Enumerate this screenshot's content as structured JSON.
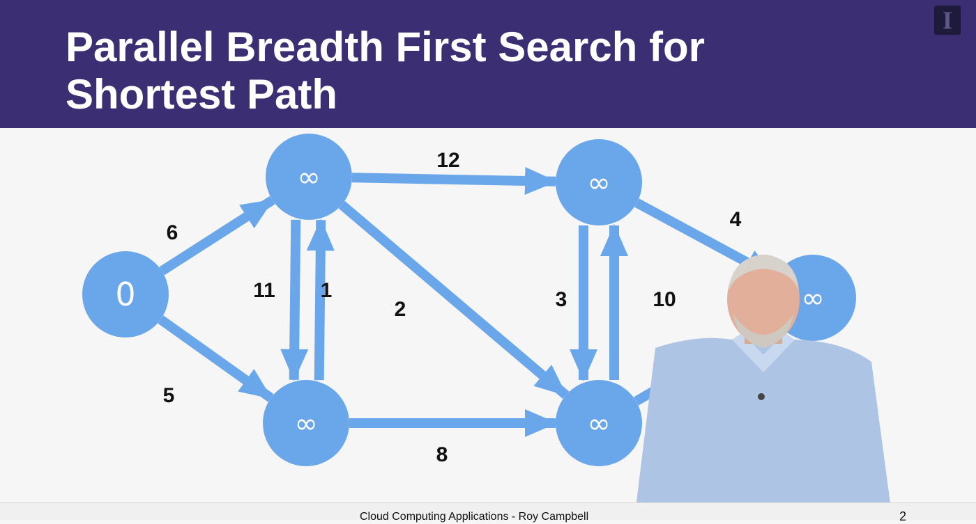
{
  "slide": {
    "title": "Parallel Breadth First Search for Shortest Path",
    "footer": "Cloud Computing Applications - Roy Campbell",
    "page_number": "2",
    "logo_glyph": "I",
    "header_color": "#3b2e73",
    "node_color": "#6aa6ea"
  },
  "graph": {
    "nodes": [
      {
        "id": "s",
        "label": "0"
      },
      {
        "id": "a",
        "label": "∞"
      },
      {
        "id": "b",
        "label": "∞"
      },
      {
        "id": "c",
        "label": "∞"
      },
      {
        "id": "d",
        "label": "∞"
      },
      {
        "id": "e",
        "label": "∞"
      }
    ],
    "edges": [
      {
        "from": "s",
        "to": "a",
        "weight": "6"
      },
      {
        "from": "s",
        "to": "b",
        "weight": "5"
      },
      {
        "from": "a",
        "to": "c",
        "weight": "12"
      },
      {
        "from": "b",
        "to": "a",
        "weight": "11"
      },
      {
        "from": "a",
        "to": "b",
        "weight": "1"
      },
      {
        "from": "a",
        "to": "d",
        "weight": "2"
      },
      {
        "from": "b",
        "to": "d",
        "weight": "8"
      },
      {
        "from": "d",
        "to": "c",
        "weight": "3"
      },
      {
        "from": "c",
        "to": "d",
        "weight": "10"
      },
      {
        "from": "c",
        "to": "e",
        "weight": "4"
      },
      {
        "from": "d",
        "to": "e",
        "weight": ""
      }
    ]
  }
}
